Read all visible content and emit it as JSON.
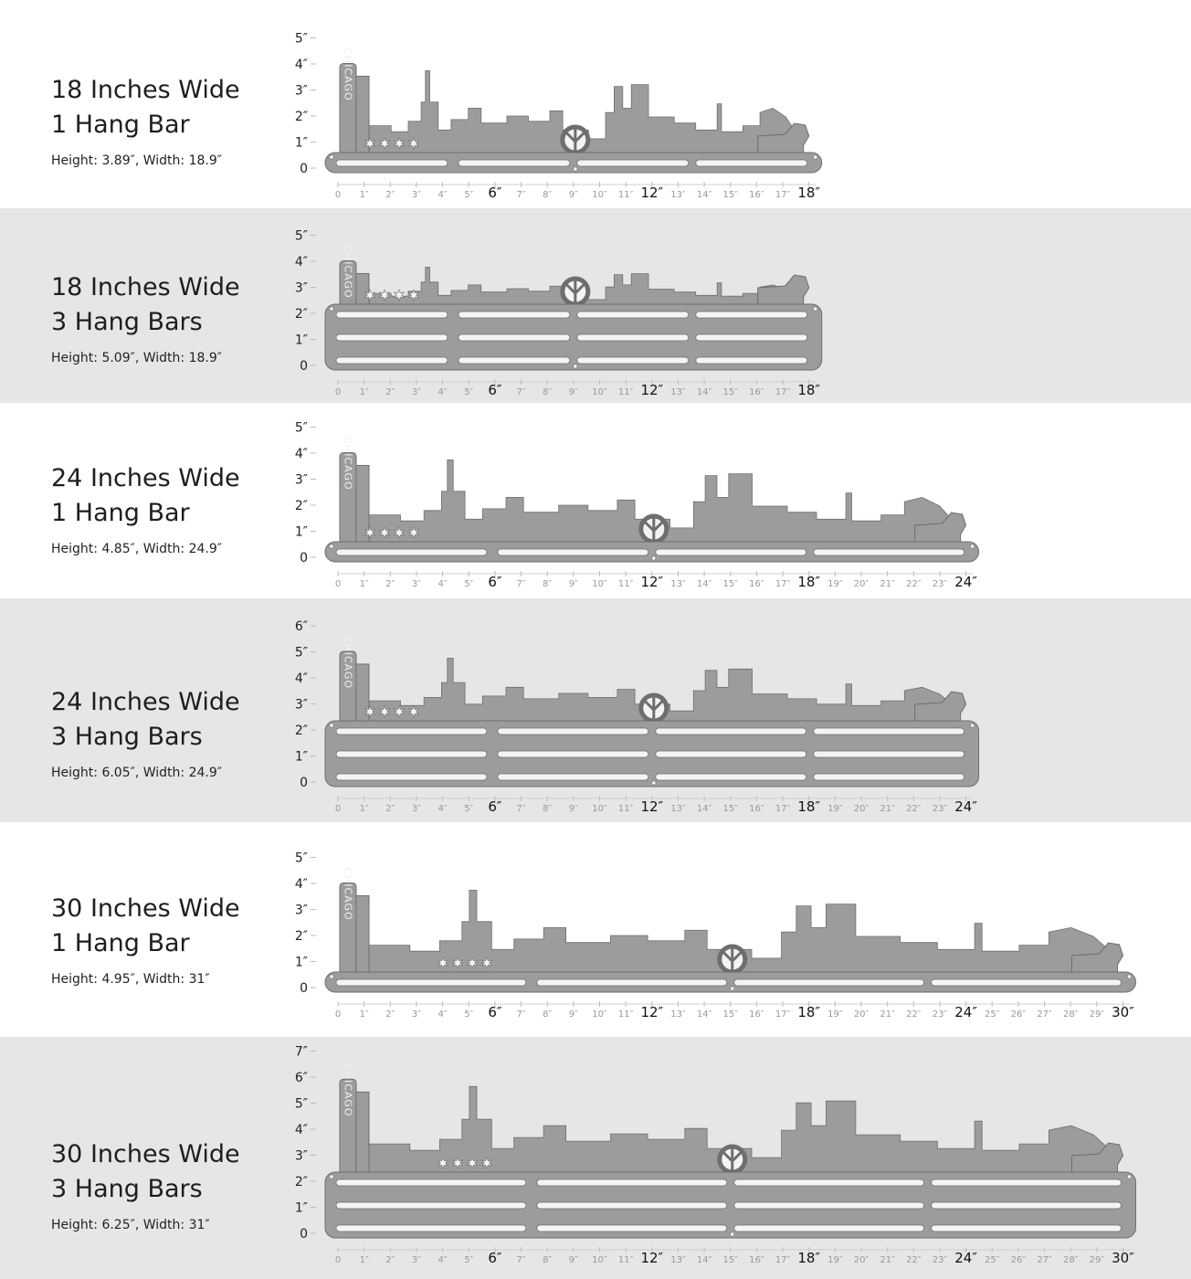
{
  "accent": {
    "metal": "#9c9c9c",
    "metal_edge": "#6e6e6e",
    "band": "#e6e6e6"
  },
  "variants": [
    {
      "title_line1": "18 Inches Wide",
      "title_line2": "1 Hang Bar",
      "dims": "Height: 3.89″,  Width: 18.9″",
      "width_in": 18,
      "bars": 1,
      "v_ticks": [
        "0",
        "1″",
        "2″",
        "3″",
        "4″",
        "5″"
      ],
      "sign": "CHICAGO",
      "stars": 4
    },
    {
      "title_line1": "18 Inches Wide",
      "title_line2": "3 Hang Bars",
      "dims": "Height: 5.09″,  Width: 18.9″",
      "width_in": 18,
      "bars": 3,
      "v_ticks": [
        "0",
        "1″",
        "2″",
        "3″",
        "4″",
        "5″"
      ],
      "sign": "CHICAGO",
      "stars": 4
    },
    {
      "title_line1": "24 Inches Wide",
      "title_line2": "1 Hang Bar",
      "dims": "Height: 4.85″,  Width: 24.9″",
      "width_in": 24,
      "bars": 1,
      "v_ticks": [
        "0",
        "1″",
        "2″",
        "3″",
        "4″",
        "5″"
      ],
      "sign": "CHICAGO",
      "stars": 4
    },
    {
      "title_line1": "24 Inches Wide",
      "title_line2": "3 Hang Bars",
      "dims": "Height: 6.05″,  Width: 24.9″",
      "width_in": 24,
      "bars": 3,
      "v_ticks": [
        "0",
        "1″",
        "2″",
        "3″",
        "4″",
        "5″",
        "6″"
      ],
      "sign": "CHICAGO",
      "stars": 4
    },
    {
      "title_line1": "30 Inches Wide",
      "title_line2": "1 Hang Bar",
      "dims": "Height: 4.95″,  Width: 31″",
      "width_in": 30,
      "bars": 1,
      "v_ticks": [
        "0",
        "1″",
        "2″",
        "3″",
        "4″",
        "5″"
      ],
      "sign": "CHICAGO",
      "stars": 4
    },
    {
      "title_line1": "30 Inches Wide",
      "title_line2": "3 Hang Bars",
      "dims": "Height: 6.25″,  Width: 31″",
      "width_in": 30,
      "bars": 3,
      "v_ticks": [
        "0",
        "1″",
        "2″",
        "3″",
        "4″",
        "5″",
        "6″",
        "7″"
      ],
      "sign": "CHICAGO",
      "stars": 4
    }
  ]
}
